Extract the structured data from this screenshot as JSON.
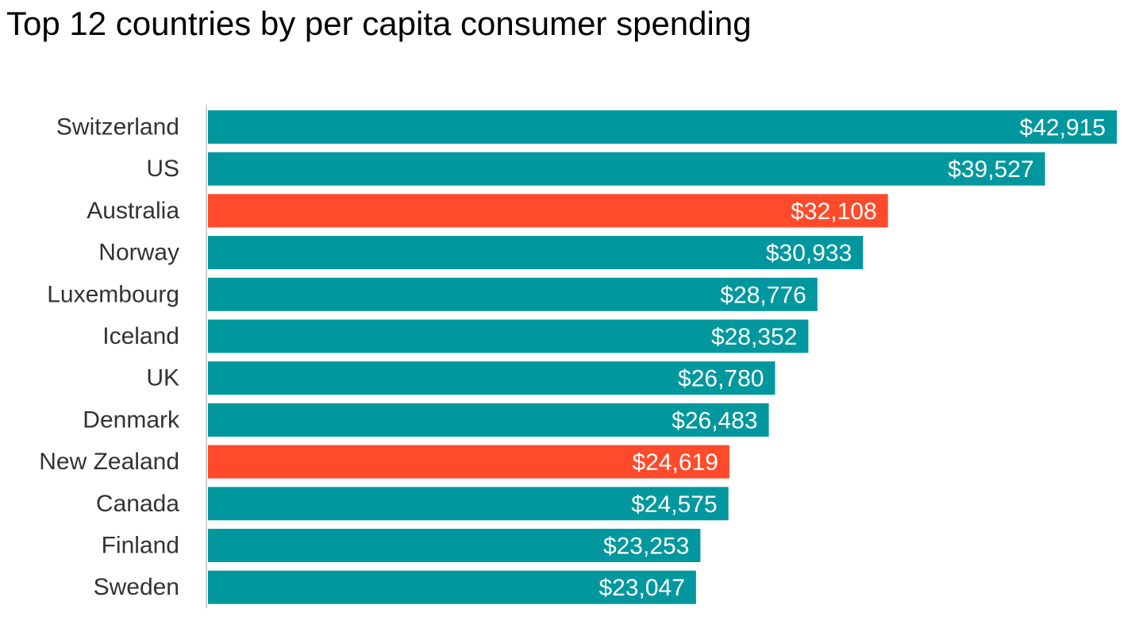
{
  "chart_data": {
    "type": "bar",
    "orientation": "horizontal",
    "title": "Top 12 countries by per capita consumer spending",
    "xlabel": "",
    "ylabel": "",
    "xlim": [
      0,
      42915
    ],
    "grid": false,
    "legend": "none",
    "categories": [
      "Switzerland",
      "US",
      "Australia",
      "Norway",
      "Luxembourg",
      "Iceland",
      "UK",
      "Denmark",
      "New Zealand",
      "Canada",
      "Finland",
      "Sweden"
    ],
    "values": [
      42915,
      39527,
      32108,
      30933,
      28776,
      28352,
      26780,
      26483,
      24619,
      24575,
      23253,
      23047
    ],
    "value_labels": [
      "$42,915",
      "$39,527",
      "$32,108",
      "$30,933",
      "$28,776",
      "$28,352",
      "$26,780",
      "$26,483",
      "$24,619",
      "$24,575",
      "$23,253",
      "$23,047"
    ],
    "highlighted": [
      "Australia",
      "New Zealand"
    ],
    "colors": {
      "default": "#00989E",
      "highlight": "#FF4B2B",
      "axis": "#d0d0d0"
    }
  }
}
